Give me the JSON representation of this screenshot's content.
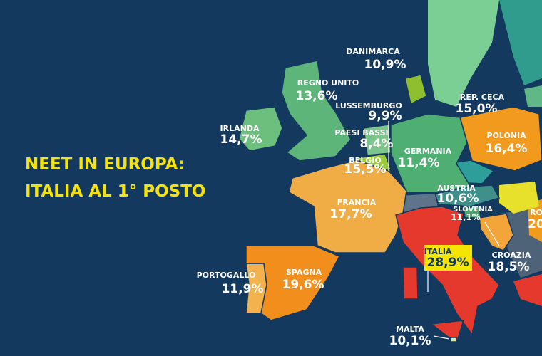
{
  "title": {
    "line1": "NEET IN EUROPA:",
    "line2": "ITALIA AL 1° POSTO"
  },
  "countries": [
    {
      "name": "DANIMARCA",
      "value_label": "10,9%",
      "color": "#8fbe2f"
    },
    {
      "name": "REGNO UNITO",
      "value_label": "13,6%",
      "color": "#5db579"
    },
    {
      "name": "IRLANDA",
      "value_label": "14,7%",
      "color": "#6cbf7c"
    },
    {
      "name": "LUSSEMBURGO",
      "value_label": "9,9%",
      "color": "#a3d24a"
    },
    {
      "name": "REP. CECA",
      "value_label": "15,0%",
      "color": "#2e9e9a"
    },
    {
      "name": "PAESI BASSI",
      "value_label": "8,4%",
      "color": "#7cc58c"
    },
    {
      "name": "POLONIA",
      "value_label": "16,4%",
      "color": "#f29a1d"
    },
    {
      "name": "GERMANIA",
      "value_label": "11,4%",
      "color": "#4fae72"
    },
    {
      "name": "BELGIO",
      "value_label": "15,5%",
      "color": "#9acb3a"
    },
    {
      "name": "AUSTRIA",
      "value_label": "10,6%",
      "color": "#3f8f8a"
    },
    {
      "name": "FRANCIA",
      "value_label": "17,7%",
      "color": "#f0ad45"
    },
    {
      "name": "SLOVENIA",
      "value_label": "11,1%",
      "color": "#48a36f"
    },
    {
      "name": "ITALIA",
      "value_label": "28,9%",
      "color": "#e4392c"
    },
    {
      "name": "CROAZIA",
      "value_label": "18,5%",
      "color": "#f4a53a"
    },
    {
      "name": "PORTOGALLO",
      "value_label": "11,9%",
      "color": "#f3b24e"
    },
    {
      "name": "SPAGNA",
      "value_label": "19,6%",
      "color": "#f28f1c"
    },
    {
      "name": "MALTA",
      "value_label": "10,1%",
      "color": "#d8e8a0"
    }
  ],
  "partial_labels": [
    "RO",
    "20"
  ]
}
